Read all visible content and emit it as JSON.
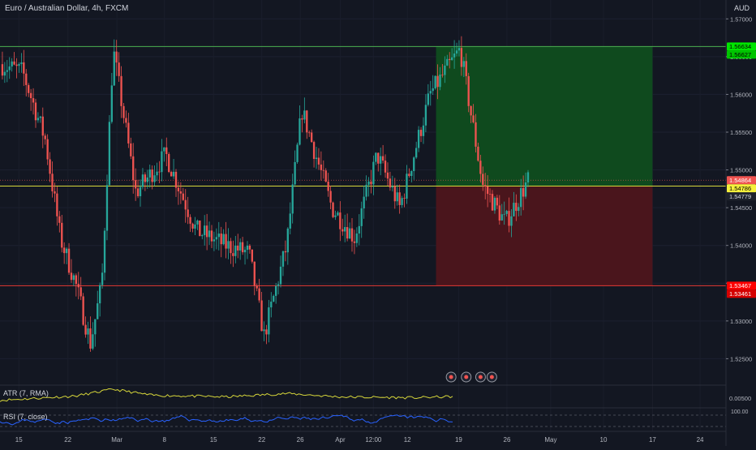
{
  "header": {
    "symbol_title": "Euro / Australian Dollar, 4h, FXCM",
    "currency": "AUD"
  },
  "colors": {
    "background": "#131722",
    "up_candle": "#26a69a",
    "down_candle": "#ef5350",
    "target_zone": "#0f4a1e",
    "stop_zone": "#4a151c",
    "tp_line": "#4caf50",
    "sl_line": "#e53935",
    "entry_line": "#d6d63a",
    "atr_line": "#d6d63a",
    "rsi_line": "#2962ff"
  },
  "price_axis": {
    "ticks": [
      "1.57000",
      "1.56500",
      "1.56000",
      "1.55500",
      "1.55000",
      "1.54500",
      "1.54000",
      "1.53500",
      "1.53000",
      "1.52500"
    ],
    "tick_values": [
      1.57,
      1.565,
      1.56,
      1.555,
      1.55,
      1.545,
      1.54,
      1.535,
      1.53,
      1.525
    ]
  },
  "price_tags": [
    {
      "value": 1.56634,
      "label": "1.56634",
      "bg": "#00e600",
      "fg": "#000000"
    },
    {
      "value": 1.56627,
      "label": "1.56627",
      "bg": "#00c400",
      "fg": "#000000"
    },
    {
      "value": 1.54864,
      "label": "1.54864",
      "bg": "#ef5350",
      "fg": "#ffffff"
    },
    {
      "value": 1.54786,
      "label": "1.54786",
      "bg": "#f5f03c",
      "fg": "#000000"
    },
    {
      "value": 1.54779,
      "label": "1.54779",
      "bg": "#1e222d",
      "fg": "#d1d4dc"
    },
    {
      "value": 1.53467,
      "label": "1.53467",
      "bg": "#ff0000",
      "fg": "#ffffff"
    },
    {
      "value": 1.53461,
      "label": "1.53461",
      "bg": "#d50000",
      "fg": "#ffffff"
    }
  ],
  "chart_data": {
    "type": "candlestick",
    "timeframe": "4h",
    "ylim": [
      1.5215,
      1.5725
    ],
    "x_ticks": [
      "15",
      "22",
      "Mar",
      "8",
      "15",
      "22",
      "26",
      "Apr",
      "12:00",
      "12",
      "19",
      "26",
      "May",
      "10",
      "17",
      "24"
    ],
    "levels": {
      "take_profit": 1.56634,
      "entry": 1.54786,
      "stop_loss": 1.53467,
      "last": 1.54864
    },
    "anchors": [
      {
        "t": 0,
        "p": 1.564
      },
      {
        "t": 0.03,
        "p": 1.563
      },
      {
        "t": 0.06,
        "p": 1.554
      },
      {
        "t": 0.08,
        "p": 1.541
      },
      {
        "t": 0.1,
        "p": 1.535
      },
      {
        "t": 0.12,
        "p": 1.527
      },
      {
        "t": 0.135,
        "p": 1.535
      },
      {
        "t": 0.15,
        "p": 1.566
      },
      {
        "t": 0.18,
        "p": 1.547
      },
      {
        "t": 0.22,
        "p": 1.552
      },
      {
        "t": 0.26,
        "p": 1.542
      },
      {
        "t": 0.3,
        "p": 1.54
      },
      {
        "t": 0.33,
        "p": 1.539
      },
      {
        "t": 0.35,
        "p": 1.528
      },
      {
        "t": 0.38,
        "p": 1.54
      },
      {
        "t": 0.4,
        "p": 1.558
      },
      {
        "t": 0.44,
        "p": 1.545
      },
      {
        "t": 0.47,
        "p": 1.541
      },
      {
        "t": 0.5,
        "p": 1.552
      },
      {
        "t": 0.53,
        "p": 1.545
      },
      {
        "t": 0.57,
        "p": 1.56
      },
      {
        "t": 0.61,
        "p": 1.566
      },
      {
        "t": 0.64,
        "p": 1.548
      },
      {
        "t": 0.67,
        "p": 1.543
      },
      {
        "t": 0.7,
        "p": 1.5486
      }
    ],
    "atr_anchors": [
      {
        "t": 0,
        "p": 0.3
      },
      {
        "t": 0.1,
        "p": 0.55
      },
      {
        "t": 0.15,
        "p": 0.95
      },
      {
        "t": 0.2,
        "p": 0.6
      },
      {
        "t": 0.3,
        "p": 0.5
      },
      {
        "t": 0.38,
        "p": 0.7
      },
      {
        "t": 0.45,
        "p": 0.5
      },
      {
        "t": 0.55,
        "p": 0.45
      },
      {
        "t": 0.62,
        "p": 0.55
      },
      {
        "t": 0.67,
        "p": 0.7
      },
      {
        "t": 0.7,
        "p": 0.25
      }
    ]
  },
  "indicators": {
    "atr_label": "ATR (7, RMA)",
    "atr_value": "0.00500",
    "rsi_label": "RSI (7, close)",
    "rsi_value": "100.00"
  }
}
